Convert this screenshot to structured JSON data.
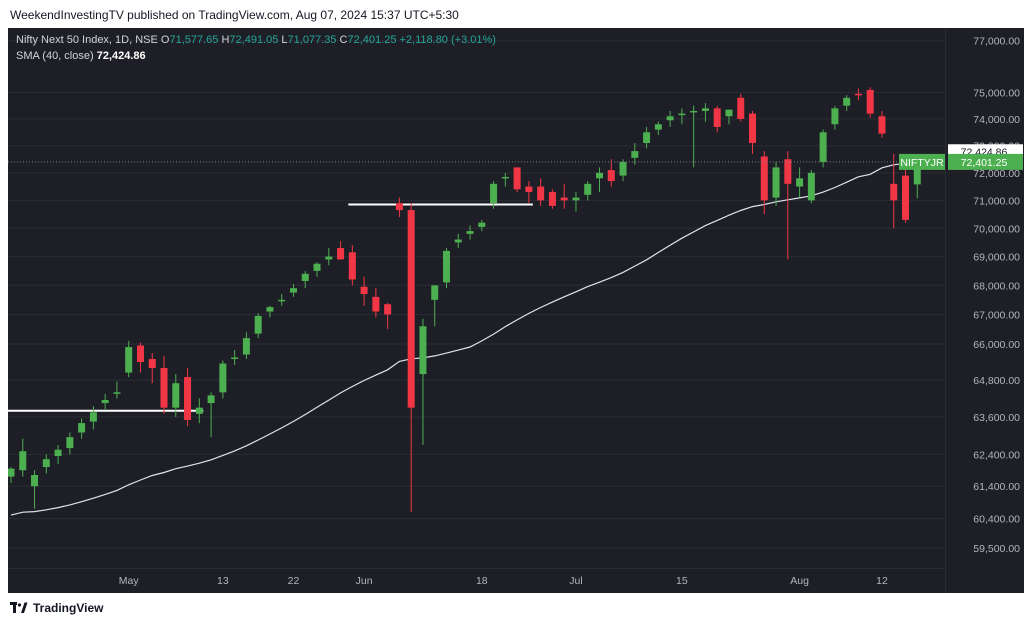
{
  "header": {
    "publisher": "WeekendInvestingTV published on TradingView.com, Aug 07, 2024 15:37 UTC+5:30"
  },
  "legend": {
    "title": "Nifty Next 50 Index, 1D, NSE",
    "open_label": "O",
    "open": "71,577.65",
    "high_label": "H",
    "high": "72,491.05",
    "low_label": "L",
    "low": "71,077.35",
    "close_label": "C",
    "close": "72,401.25",
    "change": "+2,118.80 (+3.01%)",
    "sma_label": "SMA (40, close)",
    "sma_value": "72,424.86"
  },
  "footer": {
    "brand": "TradingView"
  },
  "chart_data": {
    "type": "candlestick",
    "symbol": "NIFTYJR",
    "interval": "1D",
    "exchange": "NSE",
    "y_ticks": [
      59500,
      60400,
      61400,
      62400,
      63600,
      64800,
      66000,
      67000,
      68000,
      69000,
      70000,
      71000,
      72000,
      73000,
      74000,
      75000,
      77000
    ],
    "y_tick_labels": [
      "59,500.00",
      "60,400.00",
      "61,400.00",
      "62,400.00",
      "63,600.00",
      "64,800.00",
      "66,000.00",
      "67,000.00",
      "68,000.00",
      "69,000.00",
      "70,000.00",
      "71,000.00",
      "72,000.00",
      "73,000.00",
      "74,000.00",
      "75,000.00",
      "77,000.00"
    ],
    "ylim": [
      58900,
      77500
    ],
    "scale": "log",
    "x_ticks": [
      {
        "i": 10,
        "label": "May"
      },
      {
        "i": 18,
        "label": "13"
      },
      {
        "i": 24,
        "label": "22"
      },
      {
        "i": 30,
        "label": "Jun"
      },
      {
        "i": 40,
        "label": "18"
      },
      {
        "i": 48,
        "label": "Jul"
      },
      {
        "i": 57,
        "label": "15"
      },
      {
        "i": 67,
        "label": "Aug"
      },
      {
        "i": 74,
        "label": "12"
      }
    ],
    "last_price_label": "72,401.25",
    "sma_label_value": "72,424.86",
    "colors": {
      "up": "#4caf50",
      "down": "#f23645",
      "sma": "#e0e3eb",
      "level": "#ffffff",
      "last": "#4caf50"
    },
    "levels": [
      {
        "value": 63800,
        "from_index": 0,
        "to_index": 16
      },
      {
        "value": 70850,
        "from_index": 29,
        "to_index": 44
      }
    ],
    "candles": [
      {
        "date": "Apr 22",
        "o": 61700,
        "h": 62000,
        "l": 61500,
        "c": 61950
      },
      {
        "date": "Apr 23",
        "o": 61900,
        "h": 62900,
        "l": 61700,
        "c": 62500
      },
      {
        "date": "Apr 24",
        "o": 61400,
        "h": 61900,
        "l": 60700,
        "c": 61750
      },
      {
        "date": "Apr 25",
        "o": 62000,
        "h": 62400,
        "l": 61800,
        "c": 62250
      },
      {
        "date": "Apr 26",
        "o": 62350,
        "h": 62700,
        "l": 62100,
        "c": 62550
      },
      {
        "date": "Apr 29",
        "o": 62600,
        "h": 63100,
        "l": 62400,
        "c": 62950
      },
      {
        "date": "Apr 30",
        "o": 63100,
        "h": 63550,
        "l": 62900,
        "c": 63400
      },
      {
        "date": "May 02",
        "o": 63450,
        "h": 63950,
        "l": 63200,
        "c": 63750
      },
      {
        "date": "May 03",
        "o": 64050,
        "h": 64350,
        "l": 63850,
        "c": 64150
      },
      {
        "date": "May 06",
        "o": 64400,
        "h": 64750,
        "l": 64200,
        "c": 64400
      },
      {
        "date": "May 07",
        "o": 65050,
        "h": 66100,
        "l": 64900,
        "c": 65900
      },
      {
        "date": "May 08",
        "o": 65950,
        "h": 66050,
        "l": 65050,
        "c": 65400
      },
      {
        "date": "May 09",
        "o": 65500,
        "h": 65700,
        "l": 64700,
        "c": 65200
      },
      {
        "date": "May 10",
        "o": 65200,
        "h": 65600,
        "l": 63700,
        "c": 63900
      },
      {
        "date": "May 13",
        "o": 63900,
        "h": 65000,
        "l": 63600,
        "c": 64700
      },
      {
        "date": "May 14",
        "o": 64900,
        "h": 65200,
        "l": 63300,
        "c": 63500
      },
      {
        "date": "May 15",
        "o": 63700,
        "h": 64200,
        "l": 63400,
        "c": 63900
      },
      {
        "date": "May 16",
        "o": 64050,
        "h": 64400,
        "l": 62950,
        "c": 64300
      },
      {
        "date": "May 17",
        "o": 64400,
        "h": 65450,
        "l": 64200,
        "c": 65350
      },
      {
        "date": "May 20",
        "o": 65500,
        "h": 65800,
        "l": 65300,
        "c": 65550
      },
      {
        "date": "May 21",
        "o": 65650,
        "h": 66400,
        "l": 65500,
        "c": 66200
      },
      {
        "date": "May 22",
        "o": 66350,
        "h": 67050,
        "l": 66200,
        "c": 66950
      },
      {
        "date": "May 23",
        "o": 67100,
        "h": 67300,
        "l": 66900,
        "c": 67250
      },
      {
        "date": "May 24",
        "o": 67450,
        "h": 67700,
        "l": 67300,
        "c": 67500
      },
      {
        "date": "May 27",
        "o": 67750,
        "h": 68050,
        "l": 67600,
        "c": 67900
      },
      {
        "date": "May 28",
        "o": 68150,
        "h": 68500,
        "l": 67900,
        "c": 68400
      },
      {
        "date": "May 29",
        "o": 68500,
        "h": 68800,
        "l": 68300,
        "c": 68750
      },
      {
        "date": "May 30",
        "o": 68900,
        "h": 69300,
        "l": 68700,
        "c": 69000
      },
      {
        "date": "May 31",
        "o": 69300,
        "h": 69550,
        "l": 68900,
        "c": 68900
      },
      {
        "date": "Jun 03",
        "o": 69150,
        "h": 69400,
        "l": 68000,
        "c": 68200
      },
      {
        "date": "Jun 04",
        "o": 67950,
        "h": 68300,
        "l": 67300,
        "c": 67700
      },
      {
        "date": "Jun 05",
        "o": 67600,
        "h": 67900,
        "l": 66900,
        "c": 67100
      },
      {
        "date": "Jun 06",
        "o": 67350,
        "h": 67400,
        "l": 66500,
        "c": 67000
      },
      {
        "date": "Jun 07",
        "o": 70900,
        "h": 71100,
        "l": 70400,
        "c": 70650
      },
      {
        "date": "Jun 10",
        "o": 70650,
        "h": 70900,
        "l": 60600,
        "c": 63900
      },
      {
        "date": "Jun 11",
        "o": 65000,
        "h": 66850,
        "l": 62700,
        "c": 66600
      },
      {
        "date": "Jun 12",
        "o": 67500,
        "h": 68000,
        "l": 66600,
        "c": 68000
      },
      {
        "date": "Jun 13",
        "o": 68100,
        "h": 69300,
        "l": 67900,
        "c": 69200
      },
      {
        "date": "Jun 14",
        "o": 69500,
        "h": 69800,
        "l": 69300,
        "c": 69600
      },
      {
        "date": "Jun 17",
        "o": 69800,
        "h": 70100,
        "l": 69600,
        "c": 69900
      },
      {
        "date": "Jun 18",
        "o": 70050,
        "h": 70300,
        "l": 69900,
        "c": 70200
      },
      {
        "date": "Jun 19",
        "o": 70900,
        "h": 71700,
        "l": 70700,
        "c": 71600
      },
      {
        "date": "Jun 20",
        "o": 71800,
        "h": 72000,
        "l": 71500,
        "c": 71850
      }
    ],
    "candles_2": [
      {
        "date": "Jun 21",
        "o": 72200,
        "h": 72200,
        "l": 71300,
        "c": 71400
      },
      {
        "date": "Jun 24",
        "o": 71500,
        "h": 71700,
        "l": 70900,
        "c": 71300
      },
      {
        "date": "Jun 25",
        "o": 71500,
        "h": 71800,
        "l": 70800,
        "c": 71000
      },
      {
        "date": "Jun 26",
        "o": 71300,
        "h": 71400,
        "l": 70700,
        "c": 70800
      },
      {
        "date": "Jun 27",
        "o": 71100,
        "h": 71600,
        "l": 70700,
        "c": 71000
      },
      {
        "date": "Jun 28",
        "o": 71000,
        "h": 71300,
        "l": 70600,
        "c": 71100
      },
      {
        "date": "Jul 01",
        "o": 71200,
        "h": 71700,
        "l": 71000,
        "c": 71600
      },
      {
        "date": "Jul 02",
        "o": 71800,
        "h": 72200,
        "l": 71300,
        "c": 72000
      },
      {
        "date": "Jul 03",
        "o": 72100,
        "h": 72500,
        "l": 71500,
        "c": 71700
      },
      {
        "date": "Jul 04",
        "o": 71900,
        "h": 72500,
        "l": 71700,
        "c": 72400
      },
      {
        "date": "Jul 05",
        "o": 72550,
        "h": 73100,
        "l": 72300,
        "c": 72800
      },
      {
        "date": "Jul 08",
        "o": 73100,
        "h": 73700,
        "l": 72900,
        "c": 73500
      },
      {
        "date": "Jul 09",
        "o": 73600,
        "h": 73900,
        "l": 73400,
        "c": 73800
      },
      {
        "date": "Jul 10",
        "o": 73950,
        "h": 74300,
        "l": 73700,
        "c": 74100
      },
      {
        "date": "Jul 11",
        "o": 74150,
        "h": 74400,
        "l": 73800,
        "c": 74200
      },
      {
        "date": "Jul 12",
        "o": 74250,
        "h": 74500,
        "l": 72200,
        "c": 74300
      },
      {
        "date": "Jul 15",
        "o": 74300,
        "h": 74600,
        "l": 73900,
        "c": 74400
      },
      {
        "date": "Jul 16",
        "o": 74400,
        "h": 74500,
        "l": 73500,
        "c": 73700
      },
      {
        "date": "Jul 18",
        "o": 74100,
        "h": 74350,
        "l": 73800,
        "c": 74350
      },
      {
        "date": "Jul 19",
        "o": 74800,
        "h": 74950,
        "l": 73900,
        "c": 74000
      },
      {
        "date": "Jul 22",
        "o": 74200,
        "h": 74300,
        "l": 72700,
        "c": 73100
      },
      {
        "date": "Jul 23",
        "o": 72600,
        "h": 72800,
        "l": 70500,
        "c": 71000
      },
      {
        "date": "Jul 24",
        "o": 71100,
        "h": 72400,
        "l": 70800,
        "c": 72200
      },
      {
        "date": "Jul 25",
        "o": 72500,
        "h": 72800,
        "l": 68900,
        "c": 71600
      },
      {
        "date": "Jul 26",
        "o": 71500,
        "h": 72200,
        "l": 71100,
        "c": 71800
      },
      {
        "date": "Jul 29",
        "o": 71000,
        "h": 72100,
        "l": 70900,
        "c": 72000
      },
      {
        "date": "Jul 30",
        "o": 72400,
        "h": 73600,
        "l": 72200,
        "c": 73500
      },
      {
        "date": "Jul 31",
        "o": 73800,
        "h": 74500,
        "l": 73600,
        "c": 74400
      },
      {
        "date": "Aug 01",
        "o": 74500,
        "h": 74900,
        "l": 74300,
        "c": 74800
      },
      {
        "date": "Aug 02",
        "o": 74950,
        "h": 75150,
        "l": 74700,
        "c": 74900
      },
      {
        "date": "Aug 05",
        "o": 75100,
        "h": 75200,
        "l": 74050,
        "c": 74200
      },
      {
        "date": "Aug 06",
        "o": 74100,
        "h": 74300,
        "l": 73300,
        "c": 73450
      },
      {
        "date": "Aug 07a",
        "o": 71600,
        "h": 72700,
        "l": 70000,
        "c": 71000
      },
      {
        "date": "Aug 07b",
        "o": 71900,
        "h": 72600,
        "l": 70200,
        "c": 70300
      },
      {
        "date": "Aug 07",
        "o": 71577.65,
        "h": 72491.05,
        "l": 71077.35,
        "c": 72401.25
      }
    ]
  }
}
